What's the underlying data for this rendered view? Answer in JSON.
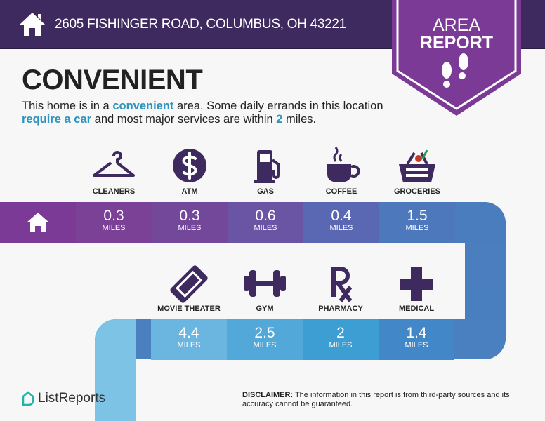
{
  "header": {
    "address": "2605 FISHINGER ROAD, COLUMBUS, OH 43221",
    "badge_line1": "AREA",
    "badge_line2": "REPORT"
  },
  "summary": {
    "rating": "CONVENIENT",
    "desc_1": "This home is in a ",
    "desc_hl1": "convenient",
    "desc_2": " area. Some daily errands in this location ",
    "desc_hl2": "require a car",
    "desc_3": " and most major services are within ",
    "desc_hl3": "2",
    "desc_4": " miles."
  },
  "unit": "MILES",
  "row1": [
    {
      "label": "CLEANERS",
      "icon": "hanger-icon",
      "distance": "0.3"
    },
    {
      "label": "ATM",
      "icon": "dollar-icon",
      "distance": "0.3"
    },
    {
      "label": "GAS",
      "icon": "gas-pump-icon",
      "distance": "0.6"
    },
    {
      "label": "COFFEE",
      "icon": "coffee-cup-icon",
      "distance": "0.4"
    },
    {
      "label": "GROCERIES",
      "icon": "basket-icon",
      "distance": "1.5"
    }
  ],
  "row2": [
    {
      "label": "MOVIE THEATER",
      "icon": "ticket-icon",
      "distance": "4.4"
    },
    {
      "label": "GYM",
      "icon": "dumbbell-icon",
      "distance": "2.5"
    },
    {
      "label": "PHARMACY",
      "icon": "rx-icon",
      "distance": "2"
    },
    {
      "label": "MEDICAL",
      "icon": "medical-cross-icon",
      "distance": "1.4"
    }
  ],
  "footer": {
    "logo": "ListReports",
    "disclaimer_label": "DISCLAIMER:",
    "disclaimer_text": " The information in this report is from third-party sources and its accuracy cannot be guaranteed."
  },
  "colors": {
    "header": "#3e2a5e",
    "badge": "#7b3a96",
    "accent": "#2e93bf",
    "icon": "#3e2a5e"
  }
}
